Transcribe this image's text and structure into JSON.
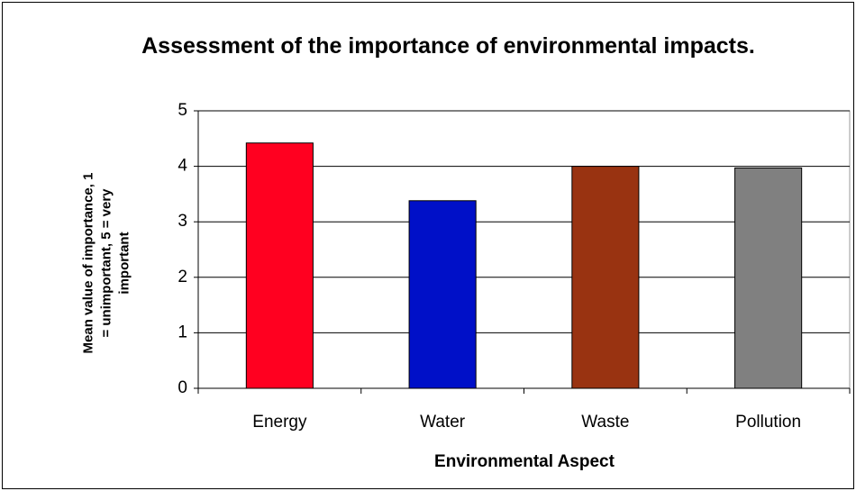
{
  "chart_data": {
    "type": "bar",
    "title": "Assessment of the importance of environmental impacts.",
    "x_label": "Environmental Aspect",
    "y_label": "Mean value of importance, 1 = unimportant, 5 = very important",
    "categories": [
      "Energy",
      "Water",
      "Waste",
      "Pollution"
    ],
    "values": [
      4.42,
      3.38,
      4.0,
      3.97
    ],
    "colors": [
      "#ff0020",
      "#0010c8",
      "#993311",
      "#808080"
    ],
    "ylim": [
      0,
      5
    ],
    "yticks": [
      0,
      1,
      2,
      3,
      4,
      5
    ],
    "grid": true
  }
}
